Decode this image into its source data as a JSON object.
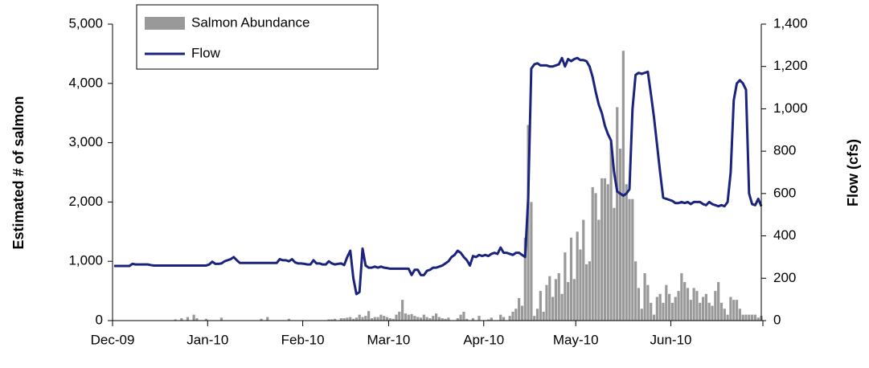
{
  "chart_data": {
    "type": "bar_line",
    "categories": [
      "Dec-09",
      null,
      null,
      null,
      null,
      null,
      null,
      null,
      null,
      null,
      null,
      null,
      null,
      null,
      null,
      null,
      null,
      null,
      null,
      null,
      null,
      null,
      null,
      null,
      null,
      null,
      null,
      null,
      null,
      null,
      null,
      "Jan-10",
      null,
      null,
      null,
      null,
      null,
      null,
      null,
      null,
      null,
      null,
      null,
      null,
      null,
      null,
      null,
      null,
      null,
      null,
      null,
      null,
      null,
      null,
      null,
      null,
      null,
      null,
      null,
      null,
      null,
      null,
      "Feb-10",
      null,
      null,
      null,
      null,
      null,
      null,
      null,
      null,
      null,
      null,
      null,
      null,
      null,
      null,
      null,
      null,
      null,
      null,
      null,
      null,
      null,
      null,
      null,
      null,
      null,
      null,
      null,
      "Mar-10",
      null,
      null,
      null,
      null,
      null,
      null,
      null,
      null,
      null,
      null,
      null,
      null,
      null,
      null,
      null,
      null,
      null,
      null,
      null,
      null,
      null,
      null,
      null,
      null,
      null,
      null,
      null,
      null,
      null,
      null,
      "Apr-10",
      null,
      null,
      null,
      null,
      null,
      null,
      null,
      null,
      null,
      null,
      null,
      null,
      null,
      null,
      null,
      null,
      null,
      null,
      null,
      null,
      null,
      null,
      null,
      null,
      null,
      null,
      null,
      null,
      null,
      "May-10",
      null,
      null,
      null,
      null,
      null,
      null,
      null,
      null,
      null,
      null,
      null,
      null,
      null,
      null,
      null,
      null,
      null,
      null,
      null,
      null,
      null,
      null,
      null,
      null,
      null,
      null,
      null,
      null,
      null,
      null,
      "Jun-10",
      null,
      null,
      null,
      null,
      null,
      null,
      null,
      null,
      null,
      null,
      null,
      null,
      null,
      null,
      null,
      null,
      null,
      null,
      null,
      null,
      null,
      null,
      null,
      null,
      null,
      null,
      null,
      null,
      null
    ],
    "ylabel": "Estimated # of salmon",
    "y2label": "Flow (cfs)",
    "ylim": [
      0,
      5000
    ],
    "yticks": [
      0,
      {
        "value": 1000,
        "label": "1,000"
      },
      {
        "value": 2000,
        "label": "2,000"
      },
      {
        "value": 3000,
        "label": "3,000"
      },
      {
        "value": 4000,
        "label": "4,000"
      },
      {
        "value": 5000,
        "label": "5,000"
      }
    ],
    "y2lim": [
      0,
      1400
    ],
    "y2ticks": [
      0,
      200,
      400,
      600,
      800,
      {
        "value": 1000,
        "label": "1,000"
      },
      {
        "value": 1200,
        "label": "1,200"
      },
      {
        "value": 1400,
        "label": "1,400"
      }
    ],
    "legend": "upper left",
    "series": [
      {
        "name": "Salmon Abundance",
        "type": "bar",
        "color": "#999999",
        "values": [
          0,
          0,
          0,
          0,
          0,
          0,
          0,
          0,
          0,
          0,
          0,
          0,
          0,
          0,
          0,
          0,
          0,
          0,
          0,
          0,
          20,
          0,
          40,
          0,
          60,
          0,
          100,
          40,
          0,
          0,
          30,
          0,
          0,
          0,
          0,
          50,
          0,
          0,
          0,
          0,
          0,
          0,
          0,
          0,
          0,
          0,
          0,
          0,
          30,
          0,
          60,
          0,
          0,
          0,
          0,
          0,
          0,
          30,
          0,
          0,
          0,
          0,
          0,
          0,
          0,
          0,
          0,
          0,
          0,
          0,
          20,
          20,
          30,
          0,
          40,
          40,
          50,
          60,
          30,
          50,
          100,
          60,
          80,
          160,
          40,
          60,
          60,
          100,
          80,
          60,
          40,
          30,
          100,
          150,
          350,
          120,
          100,
          110,
          80,
          60,
          50,
          100,
          60,
          40,
          80,
          120,
          60,
          40,
          30,
          50,
          0,
          0,
          40,
          100,
          150,
          30,
          0,
          40,
          0,
          80,
          0,
          0,
          20,
          50,
          0,
          0,
          100,
          60,
          0,
          80,
          150,
          200,
          380,
          250,
          1400,
          3300,
          2000,
          80,
          200,
          500,
          150,
          600,
          750,
          400,
          700,
          800,
          450,
          1150,
          650,
          1400,
          700,
          1500,
          1200,
          1700,
          950,
          1000,
          2250,
          2150,
          1700,
          2400,
          2400,
          2300,
          3000,
          1900,
          3600,
          2900,
          4550,
          2300,
          2050,
          2050,
          1000,
          550,
          200,
          800,
          600,
          300,
          100,
          400,
          450,
          300,
          600,
          450,
          300,
          400,
          500,
          800,
          650,
          550,
          350,
          550,
          500,
          300,
          400,
          450,
          300,
          250,
          500,
          650,
          300,
          200,
          100,
          400,
          350,
          350,
          200,
          100,
          100,
          100,
          100,
          100,
          50,
          80
        ]
      },
      {
        "name": "Flow",
        "type": "line",
        "axis": "y2",
        "color": "#1a237e",
        "values": [
          258,
          258,
          258,
          258,
          258,
          258,
          268,
          265,
          265,
          265,
          265,
          265,
          262,
          260,
          260,
          260,
          260,
          260,
          260,
          260,
          260,
          260,
          260,
          260,
          260,
          260,
          260,
          260,
          260,
          260,
          260,
          265,
          278,
          268,
          268,
          270,
          280,
          285,
          290,
          300,
          285,
          272,
          272,
          272,
          272,
          272,
          272,
          272,
          272,
          272,
          272,
          272,
          272,
          272,
          290,
          285,
          285,
          280,
          290,
          275,
          270,
          270,
          268,
          265,
          265,
          285,
          270,
          270,
          265,
          265,
          280,
          270,
          265,
          268,
          270,
          262,
          300,
          330,
          200,
          125,
          135,
          340,
          260,
          250,
          250,
          255,
          250,
          255,
          250,
          248,
          245,
          245,
          245,
          245,
          245,
          245,
          245,
          215,
          240,
          240,
          215,
          215,
          235,
          240,
          250,
          250,
          255,
          260,
          270,
          280,
          300,
          310,
          330,
          320,
          300,
          285,
          260,
          305,
          300,
          310,
          305,
          310,
          305,
          315,
          320,
          315,
          345,
          320,
          320,
          315,
          310,
          320,
          320,
          310,
          300,
          580,
          1190,
          1210,
          1215,
          1205,
          1205,
          1205,
          1200,
          1200,
          1205,
          1210,
          1240,
          1200,
          1235,
          1225,
          1235,
          1240,
          1230,
          1230,
          1225,
          1200,
          1150,
          1080,
          1020,
          980,
          920,
          880,
          850,
          700,
          610,
          600,
          590,
          600,
          620,
          1000,
          1160,
          1170,
          1165,
          1170,
          1175,
          1070,
          960,
          830,
          700,
          580,
          575,
          570,
          565,
          555,
          555,
          560,
          555,
          560,
          550,
          560,
          560,
          560,
          550,
          545,
          560,
          550,
          545,
          540,
          545,
          540,
          560,
          700,
          1040,
          1120,
          1135,
          1120,
          1090,
          600,
          550,
          545,
          575,
          540
        ]
      }
    ]
  }
}
